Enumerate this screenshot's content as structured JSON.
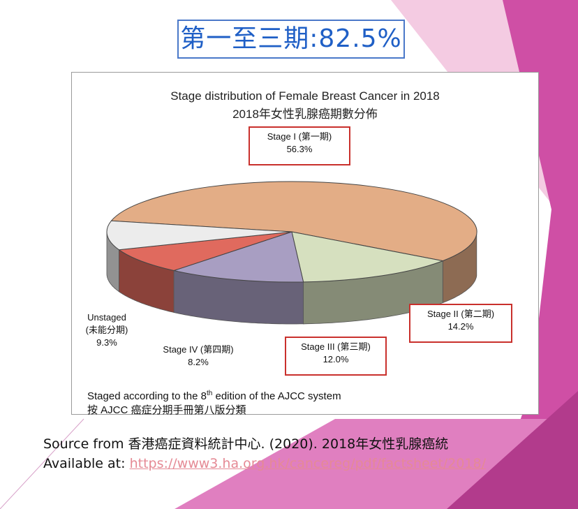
{
  "headline": "第一至三期:82.5%",
  "chart_data": {
    "type": "pie",
    "title": "Stage distribution of Female Breast Cancer in 2018",
    "subtitle": "2018年女性乳腺癌期數分佈",
    "series": [
      {
        "label": "Stage I (第一期)",
        "value": 56.3,
        "value_text": "56.3%",
        "color": "#e3ad86",
        "highlighted": true
      },
      {
        "label": "Stage II (第二期)",
        "value": 14.2,
        "value_text": "14.2%",
        "color": "#d6e0bf",
        "highlighted": true
      },
      {
        "label": "Stage III (第三期)",
        "value": 12.0,
        "value_text": "12.0%",
        "color": "#a89ec2",
        "highlighted": true
      },
      {
        "label": "Stage IV (第四期)",
        "value": 8.2,
        "value_text": "8.2%",
        "color": "#e06a5e",
        "highlighted": false
      },
      {
        "label": "Unstaged (未能分期)",
        "value": 9.3,
        "value_text": "9.3%",
        "color": "#ececec",
        "highlighted": false
      }
    ],
    "unstaged_label_lines": [
      "Unstaged",
      "(未能分期)"
    ],
    "note_line1_pre": "Staged according to the 8",
    "note_line1_sup": "th",
    "note_line1_post": " edition of the AJCC system",
    "note_line2": "按 AJCC 癌症分期手冊第八版分類"
  },
  "source": {
    "line1": "Source from 香港癌症資料統計中心. (2020). 2018年女性乳腺癌統",
    "line2_label": "Available at: ",
    "line2_link": "https://www3.ha.org.hk/cancereg/pdf/factsheet/2018/"
  },
  "colors": {
    "accent_pink": "#c93d99",
    "headline_blue": "#1f5fc6",
    "highlight_box": "#c9302c"
  }
}
